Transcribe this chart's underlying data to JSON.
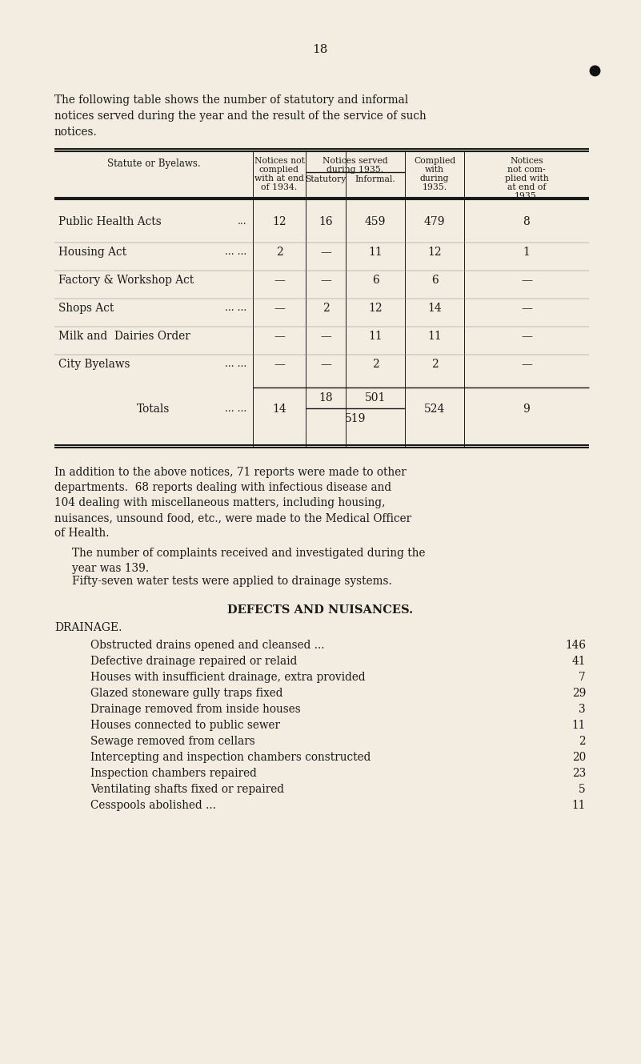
{
  "bg_color": "#f2ede0",
  "page_number": "18",
  "intro_text_lines": [
    "The following table shows the number of statutory and informal",
    "notices served during the year and the result of the service of such",
    "notices."
  ],
  "col_headers": {
    "col1": "Statute or Byelaws.",
    "col2_lines": [
      "Notices not",
      "complied",
      "with at end",
      "of 1934."
    ],
    "col3_top_lines": [
      "Notices served",
      "during 1935."
    ],
    "col3a": "Statutory",
    "col3b": "Informal.",
    "col4_lines": [
      "Complied",
      "with",
      "during",
      "1935."
    ],
    "col5_lines": [
      "Notices",
      "not com-",
      "plied with",
      "at end of",
      "1935."
    ]
  },
  "table_rows": [
    {
      "statute": "Public Health Acts",
      "dots": "...",
      "c2": "12",
      "c3a": "16",
      "c3b": "459",
      "c4": "479",
      "c5": "8"
    },
    {
      "statute": "Housing Act",
      "dots": "... ...",
      "c2": "2",
      "c3a": "—",
      "c3b": "11",
      "c4": "12",
      "c5": "1"
    },
    {
      "statute": "Factory & Workshop Act",
      "dots": "",
      "c2": "—",
      "c3a": "—",
      "c3b": "6",
      "c4": "6",
      "c5": "—"
    },
    {
      "statute": "Shops Act",
      "dots": "... ...",
      "c2": "—",
      "c3a": "2",
      "c3b": "12",
      "c4": "14",
      "c5": "—"
    },
    {
      "statute": "Milk and  Dairies Order",
      "dots": "",
      "c2": "—",
      "c3a": "—",
      "c3b": "11",
      "c4": "11",
      "c5": "—"
    },
    {
      "statute": "City Byelaws",
      "dots": "... ...",
      "c2": "—",
      "c3a": "—",
      "c3b": "2",
      "c4": "2",
      "c5": "—"
    }
  ],
  "totals_row": {
    "label": "Totals",
    "dots": "... ...",
    "c2": "14",
    "c3a_top": "18",
    "c3b_top": "501",
    "c3_bottom": "519",
    "c4": "524",
    "c5": "9"
  },
  "para1_lines": [
    "In addition to the above notices, 71 reports were made to other",
    "departments.  68 reports dealing with infectious disease and",
    "104 dealing with miscellaneous matters, including housing,",
    "nuisances, unsound food, etc., were made to the Medical Officer",
    "of Health."
  ],
  "para2_lines": [
    "The number of complaints received and investigated during the",
    "year was 139."
  ],
  "para3": "Fifty-seven water tests were applied to drainage systems.",
  "section_title": "DEFECTS AND NUISANCES.",
  "subsection": "DRAINAGE.",
  "drainage_items": [
    {
      "text": "Obstructed drains opened and cleansed ...",
      "dots": "          ...          ...",
      "value": "146"
    },
    {
      "text": "Defective drainage repaired or relaid",
      "dots": "          ...          ...          ...",
      "value": "41"
    },
    {
      "text": "Houses with insufficient drainage, extra provided",
      "dots": "          ...",
      "value": "7"
    },
    {
      "text": "Glazed stoneware gully traps fixed",
      "dots": "          ...          ...          ...",
      "value": "29"
    },
    {
      "text": "Drainage removed from inside houses",
      "dots": "          ...          ...          ...",
      "value": "3"
    },
    {
      "text": "Houses connected to public sewer",
      "dots": "          ...          ...          ...",
      "value": "11"
    },
    {
      "text": "Sewage removed from cellars",
      "dots": "          ...          ...          ...",
      "value": "2"
    },
    {
      "text": "Intercepting and inspection chambers constructed",
      "dots": "          ...",
      "value": "20"
    },
    {
      "text": "Inspection chambers repaired",
      "dots": "          ...          ...          ...",
      "value": "23"
    },
    {
      "text": "Ventilating shafts fixed or repaired",
      "dots": "          ...          ...          ...",
      "value": "5"
    },
    {
      "text": "Cesspools abolished ...",
      "dots": "          ...          ...          ...          ...",
      "value": "11"
    }
  ]
}
